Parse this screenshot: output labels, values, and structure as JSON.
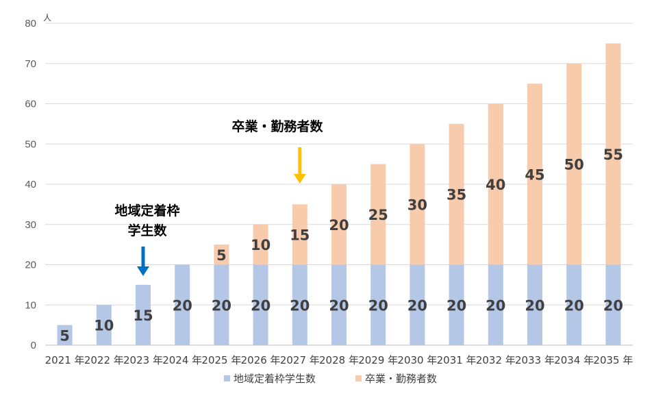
{
  "chart_data": {
    "type": "bar",
    "stacked": true,
    "unit_label": "人",
    "categories": [
      "2021 年",
      "2022 年",
      "2023 年",
      "2024 年",
      "2025 年",
      "2026 年",
      "2027 年",
      "2028 年",
      "2029 年",
      "2030 年",
      "2031 年",
      "2032 年",
      "2033 年",
      "2034 年",
      "2035 年"
    ],
    "series": [
      {
        "name": "地域定着枠学生数",
        "color": "#B4C7E7",
        "values": [
          5,
          10,
          15,
          20,
          20,
          20,
          20,
          20,
          20,
          20,
          20,
          20,
          20,
          20,
          20
        ]
      },
      {
        "name": "卒業・勤務者数",
        "color": "#F8CBAD",
        "values": [
          0,
          0,
          0,
          0,
          5,
          10,
          15,
          20,
          25,
          30,
          35,
          40,
          45,
          50,
          55
        ]
      }
    ],
    "ylim": [
      0,
      80
    ],
    "yticks": [
      0,
      10,
      20,
      30,
      40,
      50,
      60,
      70,
      80
    ],
    "grid": true,
    "legend_position": "bottom",
    "annotations": [
      {
        "lines": [
          "地域定着枠",
          "学生数"
        ],
        "arrow_color": "#0070C0",
        "category": "2023 年"
      },
      {
        "lines": [
          "卒業・勤務者数"
        ],
        "arrow_color": "#FFC000",
        "category": "2027 年"
      }
    ]
  }
}
